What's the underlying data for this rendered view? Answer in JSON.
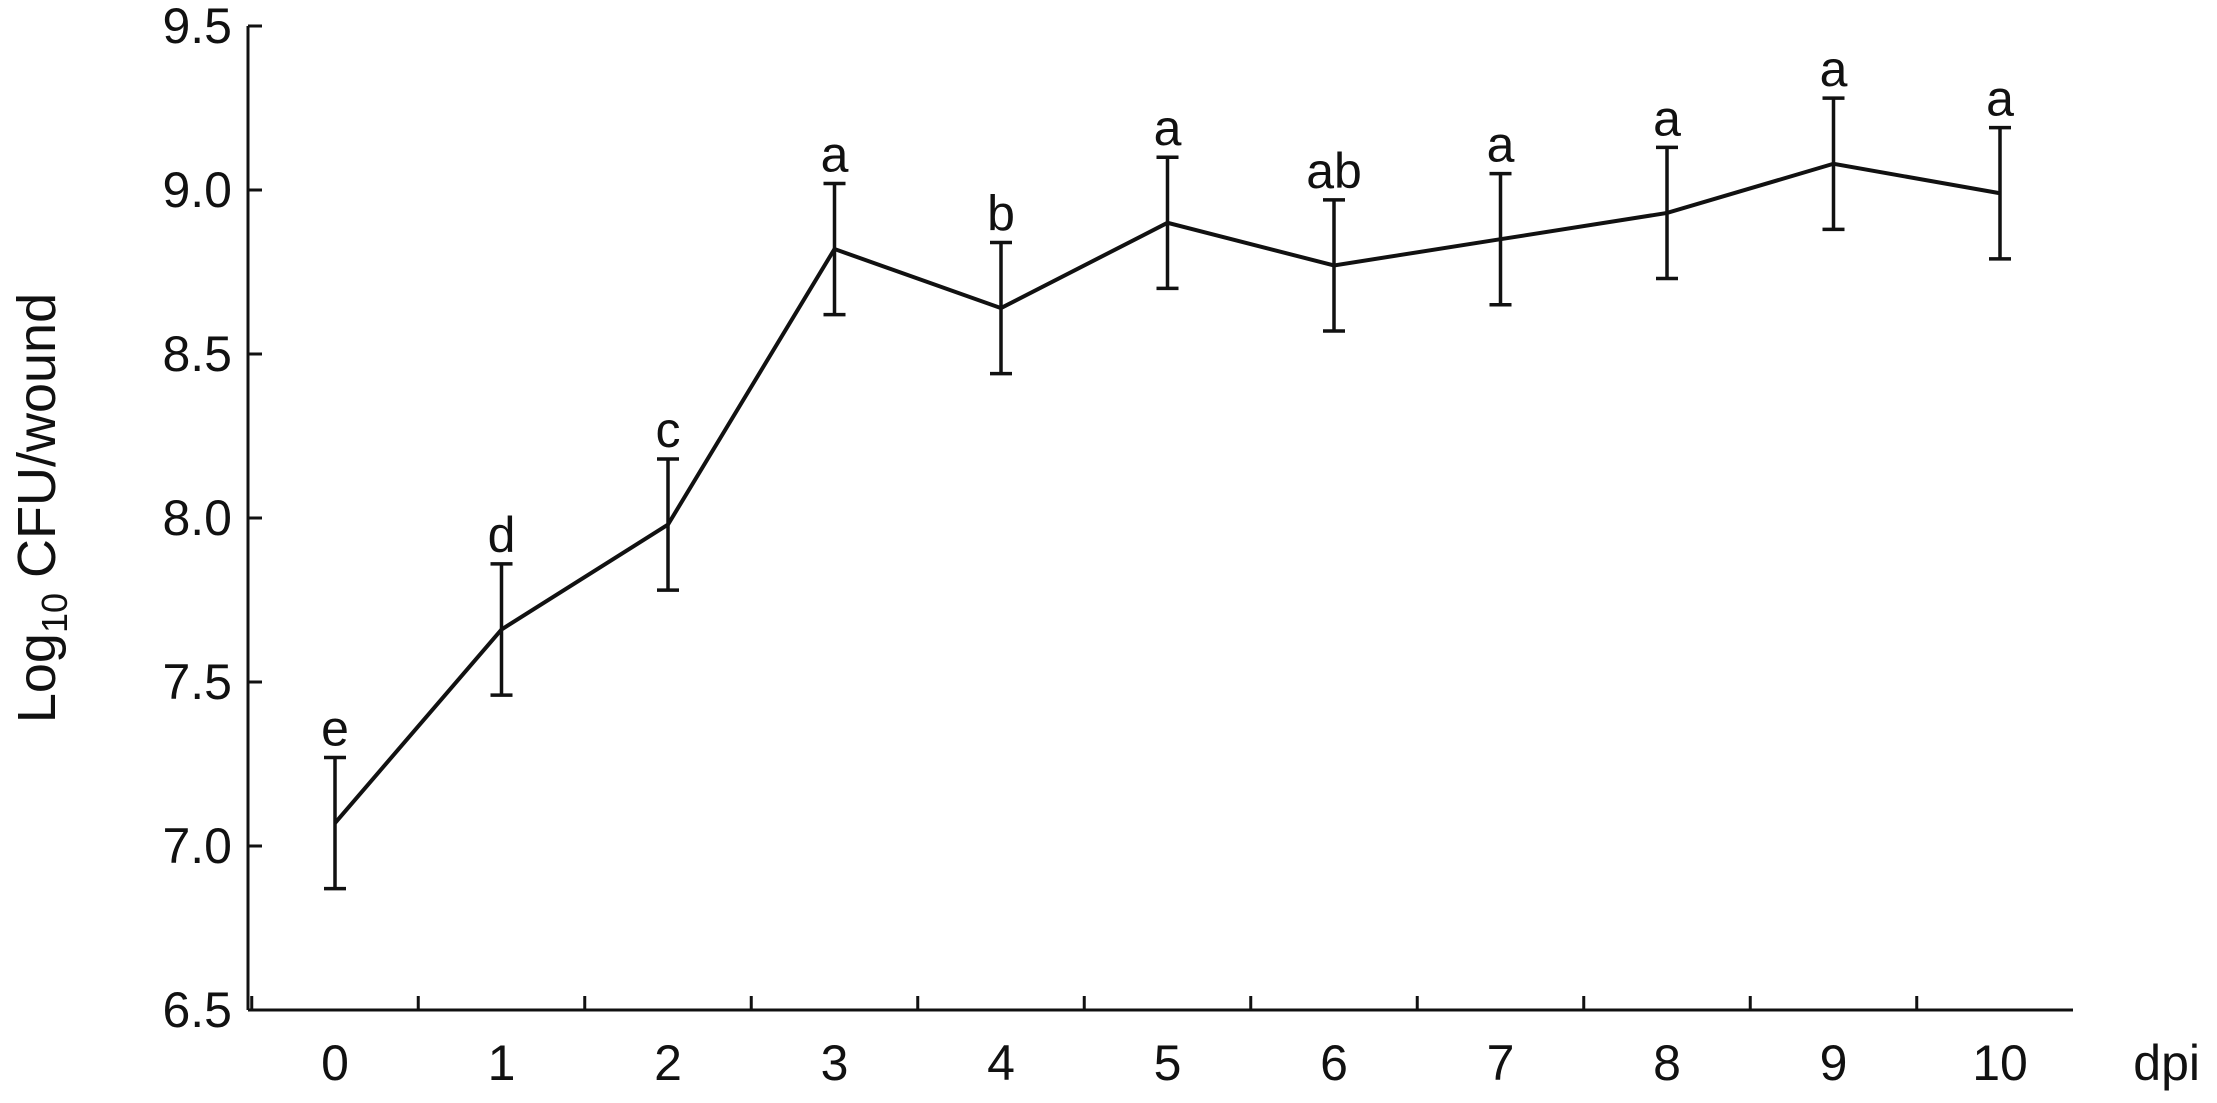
{
  "chart_data": {
    "type": "line",
    "title": "",
    "xlabel": "dpi",
    "ylabel": {
      "base": "Log",
      "subscript": "10",
      "rest": " CFU/wound"
    },
    "x": [
      0,
      1,
      2,
      3,
      4,
      5,
      6,
      7,
      8,
      9,
      10
    ],
    "x_tick_labels": [
      "0",
      "1",
      "2",
      "3",
      "4",
      "5",
      "6",
      "7",
      "8",
      "9",
      "10"
    ],
    "y_tick_labels": [
      "6.5",
      "7.0",
      "7.5",
      "8.0",
      "8.5",
      "9.0",
      "9.5"
    ],
    "y_ticks": [
      6.5,
      7.0,
      7.5,
      8.0,
      8.5,
      9.0,
      9.5
    ],
    "ylim": [
      6.5,
      9.5
    ],
    "grid": false,
    "series": [
      {
        "values": [
          7.07,
          7.66,
          7.98,
          8.82,
          8.64,
          8.9,
          8.77,
          8.85,
          8.93,
          9.08,
          8.99
        ],
        "errors": [
          0.2,
          0.2,
          0.2,
          0.2,
          0.2,
          0.2,
          0.2,
          0.2,
          0.2,
          0.2,
          0.2
        ],
        "significance": [
          "e",
          "d",
          "c",
          "a",
          "b",
          "a",
          "ab",
          "a",
          "a",
          "a",
          "a"
        ]
      }
    ]
  }
}
